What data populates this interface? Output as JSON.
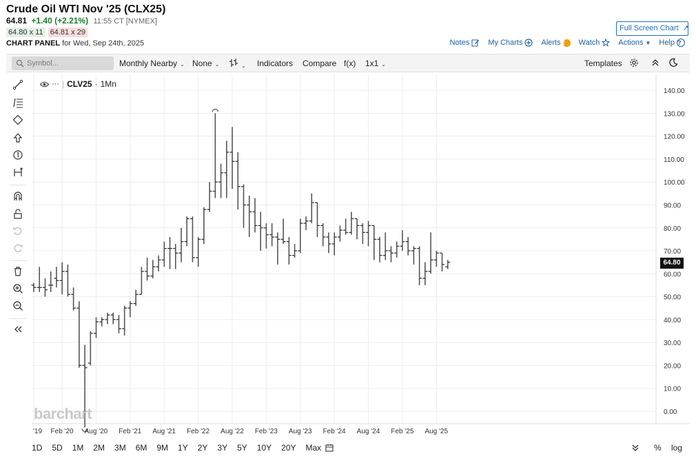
{
  "header": {
    "title": "Crude Oil WTI Nov '25 (CLX25)",
    "last": "64.81",
    "change": "+1.40 (+2.21%)",
    "time": "11:55 CT [NYMEX]",
    "bid": "64.80 x 11",
    "ask": "64.81 x 29",
    "panel_label": "CHART PANEL",
    "panel_date": "for Wed, Sep 24th, 2025",
    "fullscreen": "Full Screen Chart",
    "links": [
      "Notes",
      "My Charts",
      "Alerts",
      "Watch",
      "Actions",
      "Help"
    ]
  },
  "toolbar": {
    "symbol_placeholder": "Symbol...",
    "period": "Monthly Nearby",
    "none": "None",
    "indicators": "Indicators",
    "compare": "Compare",
    "fx": "f(x)",
    "layout": "1x1",
    "templates": "Templates"
  },
  "legend": {
    "symbol": "CLV25",
    "interval": "1Mn"
  },
  "brand": "barchart",
  "last_price_tag": "64.80",
  "ranges": [
    "1D",
    "5D",
    "1M",
    "2M",
    "3M",
    "6M",
    "9M",
    "1Y",
    "2Y",
    "3Y",
    "5Y",
    "10Y",
    "20Y",
    "Max"
  ],
  "bottom_right": {
    "percent": "%",
    "log": "log"
  },
  "colors": {
    "bar": "#555555",
    "accent": "#1f6fb5",
    "up": "#1b7c2b"
  },
  "chart_data": {
    "type": "ohlc",
    "interval": "monthly",
    "ylim": [
      -10,
      145
    ],
    "y_ticks": [
      "0.00",
      "10.00",
      "20.00",
      "30.00",
      "40.00",
      "50.00",
      "60.00",
      "70.00",
      "80.00",
      "90.00",
      "100.00",
      "110.00",
      "120.00",
      "130.00",
      "140.00"
    ],
    "x_tick_labels": [
      "'19",
      "Feb '20",
      "Aug '20",
      "Feb '21",
      "Aug '21",
      "Feb '22",
      "Aug '22",
      "Feb '23",
      "Aug '23",
      "Feb '24",
      "Aug '24",
      "Feb '25",
      "Aug '25"
    ],
    "grid": true,
    "bars": [
      {
        "d": "2019-09",
        "o": 55,
        "h": 56,
        "l": 52,
        "c": 54
      },
      {
        "d": "2019-10",
        "o": 54,
        "h": 63,
        "l": 52,
        "c": 54
      },
      {
        "d": "2019-11",
        "o": 54,
        "h": 58,
        "l": 50,
        "c": 53
      },
      {
        "d": "2019-12",
        "o": 55,
        "h": 61,
        "l": 52,
        "c": 55
      },
      {
        "d": "2020-01",
        "o": 58,
        "h": 63,
        "l": 54,
        "c": 57
      },
      {
        "d": "2020-02",
        "o": 57,
        "h": 65,
        "l": 51,
        "c": 61
      },
      {
        "d": "2020-03",
        "o": 61,
        "h": 64,
        "l": 50,
        "c": 51
      },
      {
        "d": "2020-04",
        "o": 51,
        "h": 54,
        "l": 44,
        "c": 45
      },
      {
        "d": "2020-05",
        "o": 45,
        "h": 48,
        "l": 19,
        "c": 20
      },
      {
        "d": "2020-06",
        "o": 20,
        "h": 29,
        "l": -7,
        "c": 19
      },
      {
        "d": "2020-07",
        "o": 21,
        "h": 35,
        "l": 20,
        "c": 34
      },
      {
        "d": "2020-08",
        "o": 34,
        "h": 41,
        "l": 32,
        "c": 39
      },
      {
        "d": "2020-09",
        "o": 39,
        "h": 41,
        "l": 37,
        "c": 40
      },
      {
        "d": "2020-10",
        "o": 40,
        "h": 43,
        "l": 38,
        "c": 42
      },
      {
        "d": "2020-11",
        "o": 42,
        "h": 43,
        "l": 38,
        "c": 40
      },
      {
        "d": "2020-12",
        "o": 40,
        "h": 42,
        "l": 34,
        "c": 36
      },
      {
        "d": "2021-01",
        "o": 36,
        "h": 46,
        "l": 33,
        "c": 45
      },
      {
        "d": "2021-02",
        "o": 45,
        "h": 48,
        "l": 41,
        "c": 47
      },
      {
        "d": "2021-03",
        "o": 47,
        "h": 53,
        "l": 46,
        "c": 51
      },
      {
        "d": "2021-04",
        "o": 51,
        "h": 63,
        "l": 51,
        "c": 61
      },
      {
        "d": "2021-05",
        "o": 61,
        "h": 67,
        "l": 57,
        "c": 59
      },
      {
        "d": "2021-06",
        "o": 59,
        "h": 66,
        "l": 58,
        "c": 63
      },
      {
        "d": "2021-07",
        "o": 63,
        "h": 68,
        "l": 61,
        "c": 66
      },
      {
        "d": "2021-08",
        "o": 66,
        "h": 74,
        "l": 63,
        "c": 71
      },
      {
        "d": "2021-09",
        "o": 71,
        "h": 76,
        "l": 62,
        "c": 71
      },
      {
        "d": "2021-10",
        "o": 71,
        "h": 73,
        "l": 62,
        "c": 69
      },
      {
        "d": "2021-11",
        "o": 69,
        "h": 80,
        "l": 65,
        "c": 74
      },
      {
        "d": "2021-12",
        "o": 74,
        "h": 85,
        "l": 72,
        "c": 84
      },
      {
        "d": "2022-01",
        "o": 84,
        "h": 85,
        "l": 65,
        "c": 67
      },
      {
        "d": "2022-02",
        "o": 67,
        "h": 76,
        "l": 63,
        "c": 75
      },
      {
        "d": "2022-03",
        "o": 75,
        "h": 89,
        "l": 73,
        "c": 88
      },
      {
        "d": "2022-04",
        "o": 88,
        "h": 100,
        "l": 87,
        "c": 96
      },
      {
        "d": "2022-05",
        "o": 96,
        "h": 130,
        "l": 93,
        "c": 100
      },
      {
        "d": "2022-06",
        "o": 100,
        "h": 108,
        "l": 93,
        "c": 104
      },
      {
        "d": "2022-07",
        "o": 104,
        "h": 118,
        "l": 93,
        "c": 113
      },
      {
        "d": "2022-08",
        "o": 113,
        "h": 124,
        "l": 97,
        "c": 109
      },
      {
        "d": "2022-09",
        "o": 109,
        "h": 113,
        "l": 88,
        "c": 98
      },
      {
        "d": "2022-10",
        "o": 98,
        "h": 99,
        "l": 80,
        "c": 90
      },
      {
        "d": "2022-11",
        "o": 90,
        "h": 94,
        "l": 76,
        "c": 87
      },
      {
        "d": "2022-12",
        "o": 87,
        "h": 93,
        "l": 78,
        "c": 81
      },
      {
        "d": "2023-01",
        "o": 81,
        "h": 87,
        "l": 70,
        "c": 80
      },
      {
        "d": "2023-02",
        "o": 80,
        "h": 82,
        "l": 71,
        "c": 77
      },
      {
        "d": "2023-03",
        "o": 77,
        "h": 82,
        "l": 72,
        "c": 76
      },
      {
        "d": "2023-04",
        "o": 76,
        "h": 78,
        "l": 64,
        "c": 75
      },
      {
        "d": "2023-05",
        "o": 75,
        "h": 84,
        "l": 73,
        "c": 74
      },
      {
        "d": "2023-06",
        "o": 74,
        "h": 76,
        "l": 64,
        "c": 68
      },
      {
        "d": "2023-07",
        "o": 68,
        "h": 73,
        "l": 67,
        "c": 70
      },
      {
        "d": "2023-08",
        "o": 70,
        "h": 84,
        "l": 69,
        "c": 82
      },
      {
        "d": "2023-09",
        "o": 82,
        "h": 85,
        "l": 79,
        "c": 83
      },
      {
        "d": "2023-10",
        "o": 83,
        "h": 95,
        "l": 82,
        "c": 91
      },
      {
        "d": "2023-11",
        "o": 91,
        "h": 91,
        "l": 76,
        "c": 81
      },
      {
        "d": "2023-12",
        "o": 81,
        "h": 82,
        "l": 72,
        "c": 76
      },
      {
        "d": "2024-01",
        "o": 76,
        "h": 78,
        "l": 69,
        "c": 73
      },
      {
        "d": "2024-02",
        "o": 73,
        "h": 78,
        "l": 68,
        "c": 76
      },
      {
        "d": "2024-03",
        "o": 76,
        "h": 81,
        "l": 74,
        "c": 79
      },
      {
        "d": "2024-04",
        "o": 79,
        "h": 84,
        "l": 77,
        "c": 78
      },
      {
        "d": "2024-05",
        "o": 78,
        "h": 87,
        "l": 77,
        "c": 84
      },
      {
        "d": "2024-06",
        "o": 84,
        "h": 84,
        "l": 75,
        "c": 81
      },
      {
        "d": "2024-07",
        "o": 81,
        "h": 82,
        "l": 73,
        "c": 78
      },
      {
        "d": "2024-08",
        "o": 78,
        "h": 83,
        "l": 72,
        "c": 81
      },
      {
        "d": "2024-09",
        "o": 81,
        "h": 81,
        "l": 66,
        "c": 75
      },
      {
        "d": "2024-10",
        "o": 75,
        "h": 76,
        "l": 65,
        "c": 68
      },
      {
        "d": "2024-11",
        "o": 68,
        "h": 78,
        "l": 66,
        "c": 70
      },
      {
        "d": "2024-12",
        "o": 70,
        "h": 72,
        "l": 65,
        "c": 69
      },
      {
        "d": "2025-01",
        "o": 69,
        "h": 74,
        "l": 67,
        "c": 72
      },
      {
        "d": "2025-02",
        "o": 72,
        "h": 79,
        "l": 70,
        "c": 74
      },
      {
        "d": "2025-03",
        "o": 74,
        "h": 76,
        "l": 68,
        "c": 70
      },
      {
        "d": "2025-04",
        "o": 70,
        "h": 72,
        "l": 64,
        "c": 71
      },
      {
        "d": "2025-05",
        "o": 71,
        "h": 72,
        "l": 55,
        "c": 58
      },
      {
        "d": "2025-06",
        "o": 58,
        "h": 65,
        "l": 55,
        "c": 61
      },
      {
        "d": "2025-07",
        "o": 61,
        "h": 78,
        "l": 60,
        "c": 66
      },
      {
        "d": "2025-08",
        "o": 66,
        "h": 70,
        "l": 63,
        "c": 69
      },
      {
        "d": "2025-09",
        "o": 69,
        "h": 69,
        "l": 61,
        "c": 64
      },
      {
        "d": "2025-10",
        "o": 63,
        "h": 66,
        "l": 62,
        "c": 65
      }
    ]
  }
}
